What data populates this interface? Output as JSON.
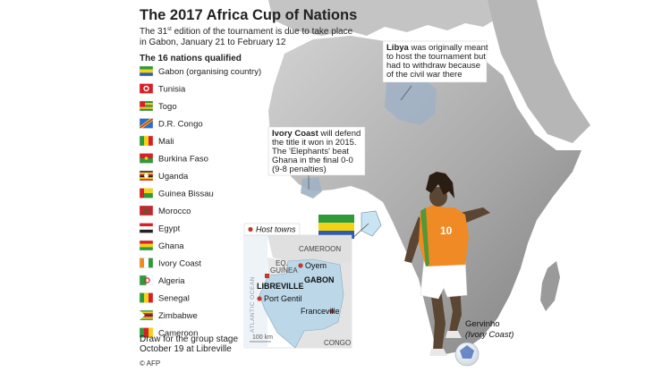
{
  "header": {
    "title": "The 2017 Africa Cup of Nations",
    "subtitle_line1_pre": "The 31",
    "subtitle_sup": "st",
    "subtitle_line1_post": " edition of the tournament is due to take place",
    "subtitle_line2": "in Gabon, January 21 to February 12"
  },
  "nations": {
    "heading": "The 16 nations qualified",
    "items": [
      {
        "name": "Gabon (organising country)",
        "colors": [
          "#2e9a3a",
          "#f4d316",
          "#2d5bb0"
        ],
        "flag": "h3"
      },
      {
        "name": "Tunisia",
        "colors": [
          "#d71f26",
          "#ffffff"
        ],
        "flag": "circle"
      },
      {
        "name": "Togo",
        "colors": [
          "#2e8a3a",
          "#f2c316",
          "#d71f26"
        ],
        "flag": "togo"
      },
      {
        "name": "D.R. Congo",
        "colors": [
          "#2d6bd0",
          "#d71f26",
          "#f2d316"
        ],
        "flag": "diag"
      },
      {
        "name": "Mali",
        "colors": [
          "#2e9a3a",
          "#f4d316",
          "#d71f26"
        ],
        "flag": "v3"
      },
      {
        "name": "Burkina Faso",
        "colors": [
          "#d71f26",
          "#2e9a3a",
          "#f4d316"
        ],
        "flag": "h2star"
      },
      {
        "name": "Uganda",
        "colors": [
          "#222222",
          "#f4d316",
          "#d71f26"
        ],
        "flag": "h6"
      },
      {
        "name": "Guinea Bissau",
        "colors": [
          "#d71f26",
          "#f4d316",
          "#2e9a3a"
        ],
        "flag": "bissau"
      },
      {
        "name": "Morocco",
        "colors": [
          "#c1272d",
          "#1e7a3a"
        ],
        "flag": "solid"
      },
      {
        "name": "Egypt",
        "colors": [
          "#d71f26",
          "#ffffff",
          "#222222"
        ],
        "flag": "h3"
      },
      {
        "name": "Ghana",
        "colors": [
          "#d71f26",
          "#f4d316",
          "#2e9a3a"
        ],
        "flag": "h3"
      },
      {
        "name": "Ivory Coast",
        "colors": [
          "#f08a24",
          "#ffffff",
          "#2e9a3a"
        ],
        "flag": "v3"
      },
      {
        "name": "Algeria",
        "colors": [
          "#2e9a3a",
          "#ffffff",
          "#d71f26"
        ],
        "flag": "v2"
      },
      {
        "name": "Senegal",
        "colors": [
          "#2e9a3a",
          "#f4d316",
          "#d71f26"
        ],
        "flag": "v3"
      },
      {
        "name": "Zimbabwe",
        "colors": [
          "#2e9a3a",
          "#f4d316",
          "#d71f26"
        ],
        "flag": "zim"
      },
      {
        "name": "Cameroon",
        "colors": [
          "#2e9a3a",
          "#d71f26",
          "#f4d316"
        ],
        "flag": "v3"
      }
    ]
  },
  "draw_note": {
    "line1": "Draw for the group stage",
    "line2": "October 19 at Libreville"
  },
  "credit": "© AFP",
  "libya_note": {
    "bold": "Libya",
    "line1_rest": " was originally meant",
    "line2": "to host the tournament but",
    "line3": "had to withdraw because",
    "line4": "of the civil war there"
  },
  "ivory_note": {
    "bold": "Ivory Coast",
    "line1_rest": " will defend",
    "line2": "the title it won in 2015.",
    "line3": "The 'Elephants' beat",
    "line4": "Ghana in the final 0-0",
    "line5": "(9-8 penalties)"
  },
  "inset_map": {
    "legend": "Host towns",
    "labels": {
      "cameroon": "CAMEROON",
      "eq_guinea_1": "EQ.",
      "eq_guinea_2": "GUINEA",
      "gabon": "GABON",
      "ocean": "ATLANTIC OCEAN",
      "congo": "CONGO",
      "scale": "100 km"
    },
    "cities": [
      "Oyem",
      "LIBREVILLE",
      "Port Gentil",
      "Franceville"
    ]
  },
  "player": {
    "name": "Gervinho",
    "team": "(Ivory Coast)",
    "number": "10"
  },
  "colors": {
    "land": "#b9b9b9",
    "land_dark": "#8f8f8f",
    "gabon_highlight": "#bcd7e8",
    "city_dot": "#c0392b"
  }
}
